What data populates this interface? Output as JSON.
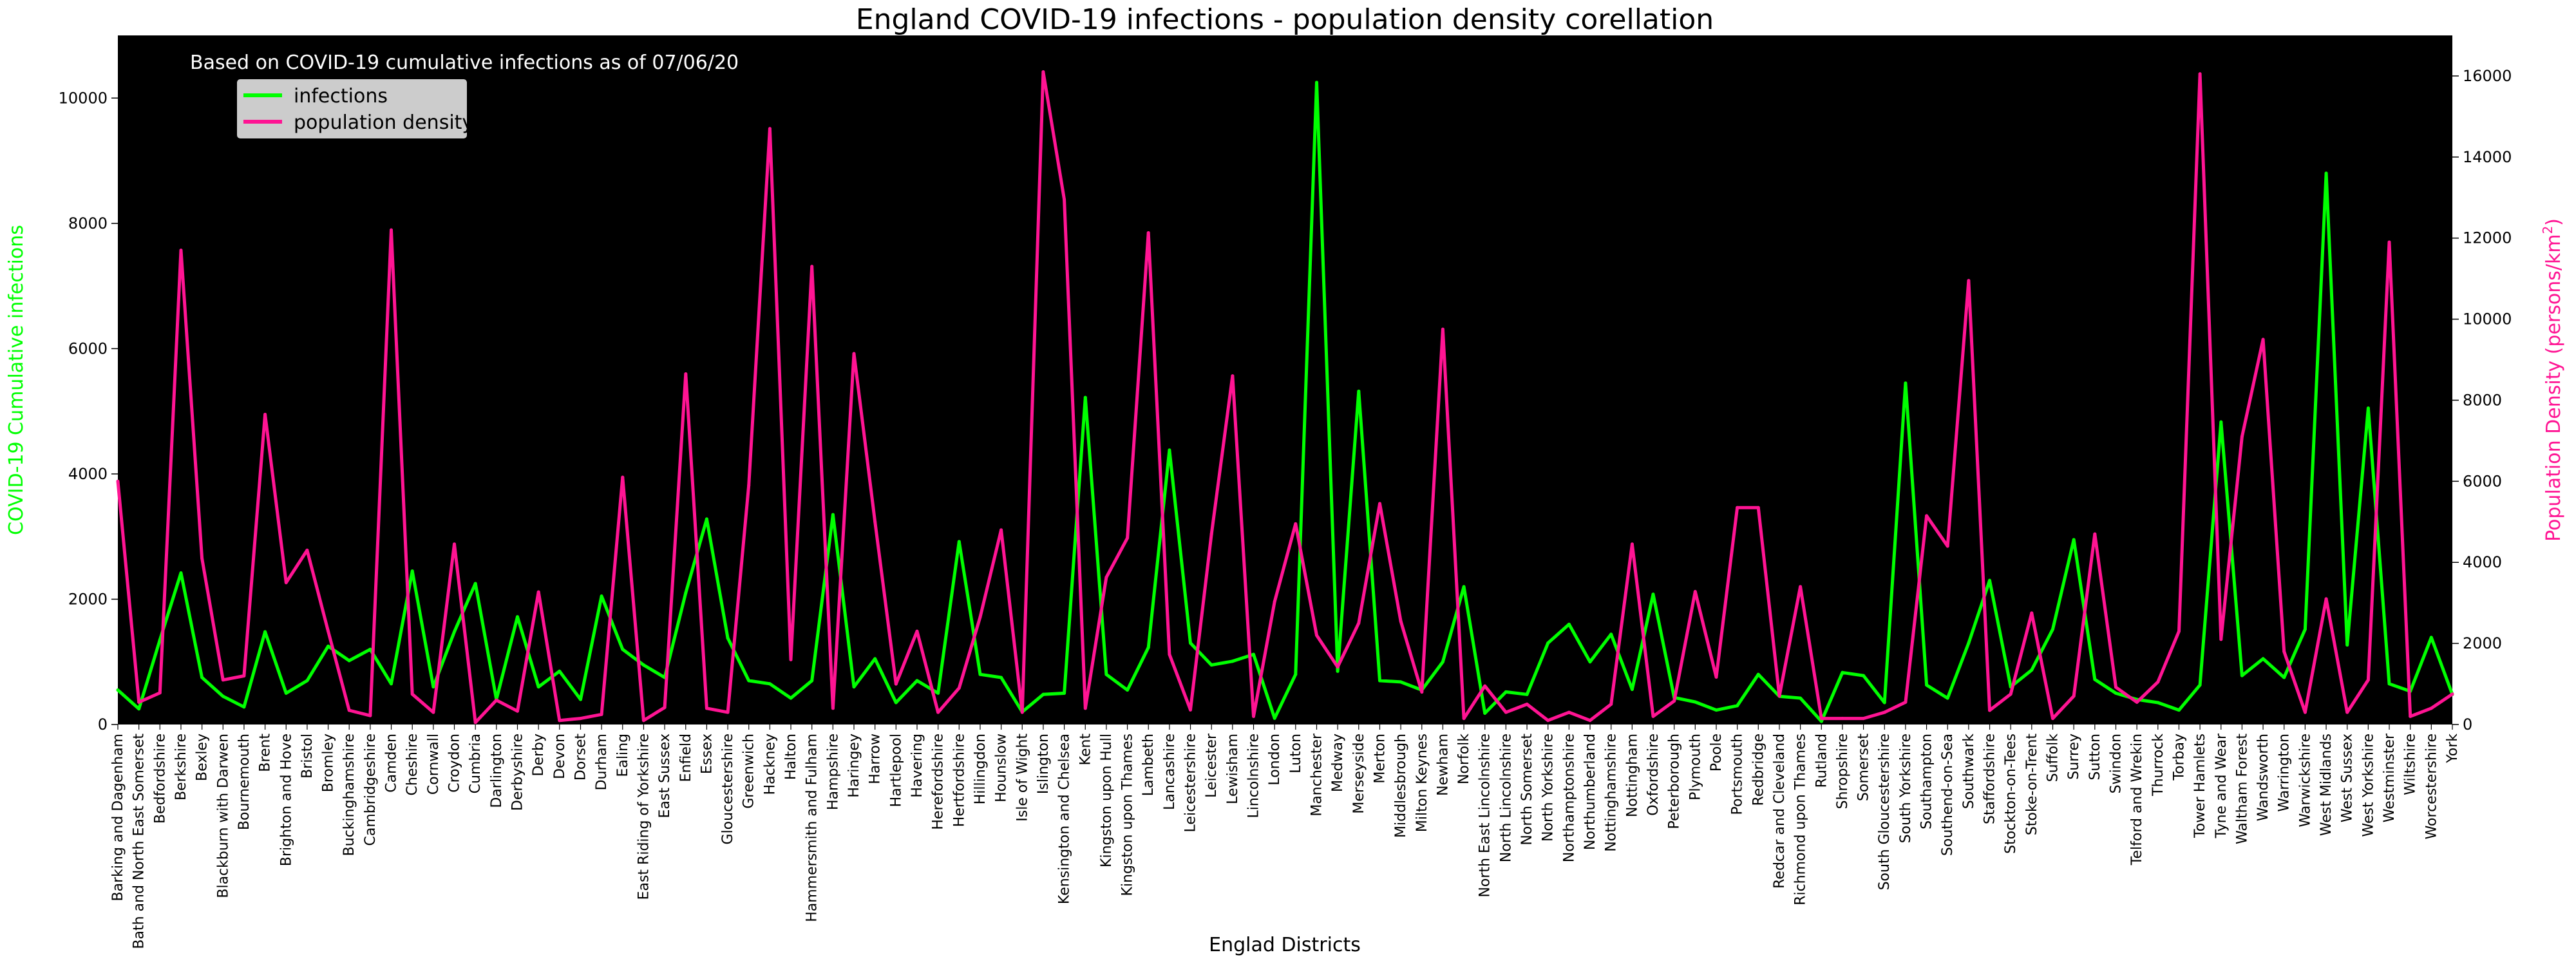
{
  "chart_data": {
    "type": "line",
    "title": "England COVID-19 infections - population density corellation",
    "annotation": "Based on COVID-19 cumulative infections as of   07/06/20",
    "xlabel": "Englad Districts",
    "ylabel_left": "COVID-19 Cumulative infections",
    "ylabel_right_prefix": "Population Density (persons/km",
    "ylabel_right_sup": "2",
    "ylabel_right_suffix": ")",
    "ylim_left": [
      0,
      11000
    ],
    "ylim_right": [
      0,
      17000
    ],
    "yticks_left": [
      0,
      2000,
      4000,
      6000,
      8000,
      10000
    ],
    "yticks_right": [
      0,
      2000,
      4000,
      6000,
      8000,
      10000,
      12000,
      14000,
      16000
    ],
    "legend_placement": "upper-left",
    "plot_background": "#000000",
    "colors": {
      "infections": "#00ff00",
      "population_density": "#ff1493"
    },
    "categories": [
      "Barking and Dagenham",
      "Bath and North East Somerset",
      "Bedfordshire",
      "Berkshire",
      "Bexley",
      "Blackburn with Darwen",
      "Bournemouth",
      "Brent",
      "Brighton and Hove",
      "Bristol",
      "Bromley",
      "Buckinghamshire",
      "Cambridgeshire",
      "Camden",
      "Cheshire",
      "Cornwall",
      "Croydon",
      "Cumbria",
      "Darlington",
      "Derbyshire",
      "Derby",
      "Devon",
      "Dorset",
      "Durham",
      "Ealing",
      "East Riding of Yorkshire",
      "East Sussex",
      "Enfield",
      "Essex",
      "Gloucestershire",
      "Greenwich",
      "Hackney",
      "Halton",
      "Hammersmith and Fulham",
      "Hampshire",
      "Haringey",
      "Harrow",
      "Hartlepool",
      "Havering",
      "Herefordshire",
      "Hertfordshire",
      "Hillingdon",
      "Hounslow",
      "Isle of Wight",
      "Islington",
      "Kensington and Chelsea",
      "Kent",
      "Kingston upon Hull",
      "Kingston upon Thames",
      "Lambeth",
      "Lancashire",
      "Leicestershire",
      "Leicester",
      "Lewisham",
      "Lincolnshire",
      "London",
      "Luton",
      "Manchester",
      "Medway",
      "Merseyside",
      "Merton",
      "Middlesbrough",
      "Milton Keynes",
      "Newham",
      "Norfolk",
      "North East Lincolnshire",
      "North Lincolnshire",
      "North Somerset",
      "North Yorkshire",
      "Northamptonshire",
      "Northumberland",
      "Nottinghamshire",
      "Nottingham",
      "Oxfordshire",
      "Peterborough",
      "Plymouth",
      "Poole",
      "Portsmouth",
      "Redbridge",
      "Redcar and Cleveland",
      "Richmond upon Thames",
      "Rutland",
      "Shropshire",
      "Somerset",
      "South Gloucestershire",
      "South Yorkshire",
      "Southampton",
      "Southend-on-Sea",
      "Southwark",
      "Staffordshire",
      "Stockton-on-Tees",
      "Stoke-on-Trent",
      "Suffolk",
      "Surrey",
      "Sutton",
      "Swindon",
      "Telford and Wrekin",
      "Thurrock",
      "Torbay",
      "Tower Hamlets",
      "Tyne and Wear",
      "Waltham Forest",
      "Wandsworth",
      "Warrington",
      "Warwickshire",
      "West Midlands",
      "West Sussex",
      "West Yorkshire",
      "Westminster",
      "Wiltshire",
      "Worcestershire",
      "York"
    ],
    "series": [
      {
        "name": "infections",
        "axis": "left",
        "values": [
          550,
          250,
          1350,
          2420,
          750,
          450,
          280,
          1480,
          500,
          700,
          1250,
          1020,
          1200,
          650,
          2450,
          600,
          1480,
          2250,
          400,
          1720,
          600,
          850,
          400,
          2050,
          1200,
          950,
          750,
          2100,
          3280,
          1380,
          700,
          650,
          420,
          700,
          3350,
          600,
          1050,
          350,
          700,
          500,
          2920,
          800,
          750,
          200,
          480,
          500,
          5220,
          800,
          550,
          1230,
          4380,
          1300,
          950,
          1010,
          1120,
          100,
          800,
          10250,
          850,
          5320,
          700,
          680,
          550,
          1000,
          2200,
          180,
          520,
          480,
          1300,
          1600,
          1000,
          1440,
          560,
          2080,
          430,
          360,
          230,
          300,
          800,
          450,
          420,
          50,
          830,
          780,
          350,
          5450,
          630,
          420,
          1300,
          2300,
          600,
          870,
          1520,
          2950,
          720,
          500,
          400,
          350,
          230,
          630,
          4830,
          780,
          1050,
          750,
          1520,
          8800,
          1270,
          5050,
          650,
          530,
          1390,
          480
        ]
      },
      {
        "name": "population density",
        "axis": "right",
        "values": [
          6000,
          550,
          780,
          11700,
          4100,
          1100,
          1200,
          7650,
          3500,
          4300,
          2300,
          350,
          220,
          12200,
          750,
          300,
          4450,
          50,
          600,
          330,
          3270,
          100,
          150,
          250,
          6100,
          100,
          420,
          8650,
          400,
          300,
          5900,
          14700,
          1600,
          11300,
          400,
          9150,
          5000,
          1000,
          2300,
          300,
          900,
          2650,
          4800,
          300,
          16100,
          12950,
          400,
          3630,
          4600,
          12130,
          1730,
          360,
          4700,
          8600,
          200,
          3030,
          4950,
          2200,
          1420,
          2500,
          5450,
          2550,
          800,
          9750,
          150,
          950,
          300,
          500,
          100,
          300,
          100,
          500,
          4450,
          200,
          580,
          3280,
          1170,
          5350,
          5350,
          700,
          3400,
          150,
          150,
          150,
          300,
          550,
          5150,
          4400,
          10950,
          350,
          750,
          2750,
          150,
          700,
          4700,
          920,
          550,
          1050,
          2300,
          16050,
          2100,
          7100,
          9500,
          1800,
          300,
          3100,
          300,
          1100,
          11900,
          200,
          400,
          750
        ]
      }
    ]
  }
}
